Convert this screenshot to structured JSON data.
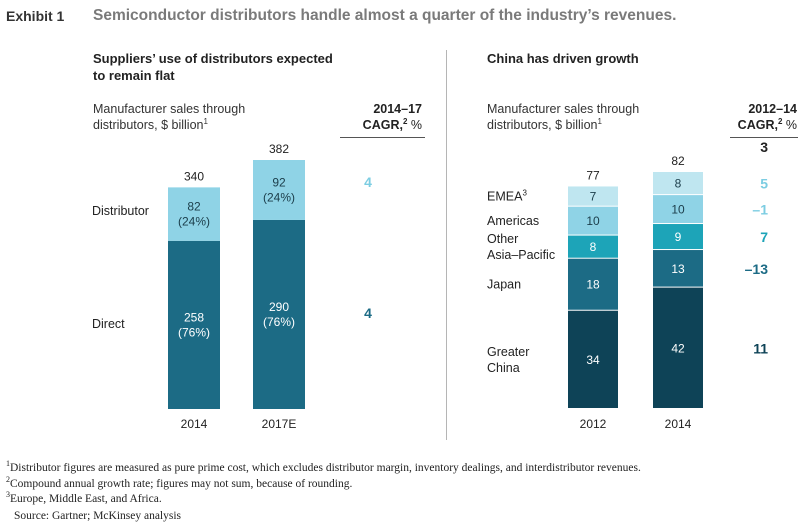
{
  "header": {
    "exhibit": "Exhibit 1",
    "headline": "Semiconductor distributors handle almost a quarter of the industry’s revenues."
  },
  "left_panel": {
    "title_line1": "Suppliers’ use of distributors expected",
    "title_line2": "to remain flat",
    "axis_label_line1": "Manufacturer sales through",
    "axis_label_line2": "distributors, $ billion",
    "axis_label_sup": "1",
    "cagr_period": "2014–17",
    "cagr_label": "CAGR,",
    "cagr_sup": "2",
    "cagr_unit": " %"
  },
  "right_panel": {
    "title": "China has driven growth",
    "axis_label_line1": "Manufacturer sales through",
    "axis_label_line2": "distributors, $ billion",
    "axis_label_sup": "1",
    "cagr_period": "2012–14",
    "cagr_label": "CAGR,",
    "cagr_sup": "2",
    "cagr_unit": " %"
  },
  "footnotes": [
    {
      "sup": "1",
      "text": "Distributor figures are measured as pure prime cost, which excludes distributor margin, inventory dealings, and interdistributor revenues."
    },
    {
      "sup": "2",
      "text": "Compound annual growth rate; figures may not sum, because of rounding."
    },
    {
      "sup": "3",
      "text": "Europe, Middle East, and Africa."
    },
    {
      "sup": "",
      "text": "Source: Gartner; McKinsey analysis"
    }
  ],
  "colors": {
    "direct": "#1c6b85",
    "distributor": "#8fd3e6",
    "emea": "#bfe6f0",
    "americas": "#8fd3e6",
    "other_apac": "#1da4b8",
    "japan": "#1c6b85",
    "greater_china": "#0e4357",
    "cagr_light": "#7ccde2",
    "cagr_mid": "#1da4b8",
    "cagr_dark": "#1c6b85",
    "cagr_black": "#222222",
    "cagr_navy": "#0e4357"
  },
  "chart_data": [
    {
      "type": "bar",
      "stacked": true,
      "title": "Suppliers’ use of distributors expected to remain flat",
      "ylabel": "Manufacturer sales through distributors, $ billion",
      "categories": [
        "2014",
        "2017E"
      ],
      "totals": [
        340,
        382
      ],
      "series": [
        {
          "name": "Direct",
          "values": [
            258,
            290
          ],
          "labels": [
            "258\n(76%)",
            "290\n(76%)"
          ],
          "cagr": "4"
        },
        {
          "name": "Distributor",
          "values": [
            82,
            92
          ],
          "labels": [
            "82\n(24%)",
            "92\n(24%)"
          ],
          "cagr": "4"
        }
      ],
      "cagr_header": "2014–17 CAGR, %"
    },
    {
      "type": "bar",
      "stacked": true,
      "title": "China has driven growth",
      "ylabel": "Manufacturer sales through distributors, $ billion",
      "categories": [
        "2012",
        "2014"
      ],
      "totals": [
        77,
        82
      ],
      "series": [
        {
          "name": "Greater China",
          "display": [
            "Greater",
            "China"
          ],
          "values": [
            34,
            42
          ],
          "cagr": "11"
        },
        {
          "name": "Japan",
          "display": [
            "Japan"
          ],
          "values": [
            18,
            13
          ],
          "cagr": "–13"
        },
        {
          "name": "Other Asia–Pacific",
          "display": [
            "Other",
            "Asia–Pacific"
          ],
          "values": [
            8,
            9
          ],
          "cagr": "7"
        },
        {
          "name": "Americas",
          "display": [
            "Americas"
          ],
          "values": [
            10,
            10
          ],
          "cagr": "–1"
        },
        {
          "name": "EMEA",
          "display": [
            "EMEA"
          ],
          "sup": "3",
          "values": [
            7,
            8
          ],
          "cagr": "5"
        }
      ],
      "total_cagr": "3",
      "cagr_header": "2012–14 CAGR, %"
    }
  ]
}
